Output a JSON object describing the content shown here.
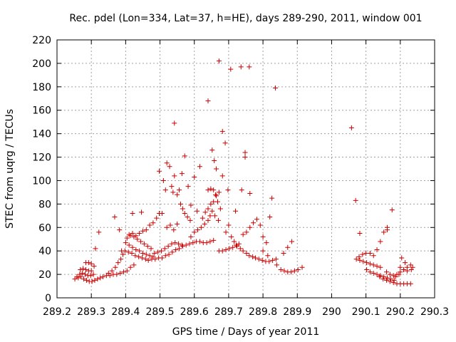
{
  "chart_data": {
    "type": "scatter",
    "title": "Rec. pdel (Lon=334, Lat=37, h=HE), days 289-290, 2011, window 001",
    "xlabel": "GPS time / Days of year 2011",
    "ylabel": "STEC from uqrg / TECUs",
    "xlim": [
      289.2,
      290.3
    ],
    "ylim": [
      0,
      220
    ],
    "xticks": [
      289.2,
      289.3,
      289.4,
      289.5,
      289.6,
      289.7,
      289.8,
      289.9,
      290,
      290.1,
      290.2,
      290.3
    ],
    "xtick_labels": [
      "289.2",
      "289.3",
      "289.4",
      "289.5",
      "289.6",
      "289.7",
      "289.8",
      "289.9",
      "290",
      "290.1",
      "290.2",
      "290.3"
    ],
    "yticks": [
      0,
      20,
      40,
      60,
      80,
      100,
      120,
      140,
      160,
      180,
      200,
      220
    ],
    "ytick_labels": [
      "0",
      "20",
      "40",
      "60",
      "80",
      "100",
      "120",
      "140",
      "160",
      "180",
      "200",
      "220"
    ],
    "grid": true,
    "marker": "+",
    "color": "#cc0000",
    "series": [
      {
        "name": "STEC",
        "points": [
          [
            289.252,
            16
          ],
          [
            289.262,
            17
          ],
          [
            289.27,
            18
          ],
          [
            289.278,
            16
          ],
          [
            289.286,
            15
          ],
          [
            289.294,
            14
          ],
          [
            289.302,
            14
          ],
          [
            289.31,
            15
          ],
          [
            289.318,
            16
          ],
          [
            289.326,
            17
          ],
          [
            289.258,
            18
          ],
          [
            289.266,
            20
          ],
          [
            289.274,
            21
          ],
          [
            289.282,
            20
          ],
          [
            289.29,
            19
          ],
          [
            289.298,
            19
          ],
          [
            289.306,
            20
          ],
          [
            289.268,
            24
          ],
          [
            289.276,
            25
          ],
          [
            289.284,
            24
          ],
          [
            289.292,
            23
          ],
          [
            289.3,
            23
          ],
          [
            289.284,
            30
          ],
          [
            289.292,
            30
          ],
          [
            289.3,
            29
          ],
          [
            289.308,
            27
          ],
          [
            289.312,
            42
          ],
          [
            289.322,
            56
          ],
          [
            289.334,
            18
          ],
          [
            289.344,
            19
          ],
          [
            289.354,
            19
          ],
          [
            289.364,
            20
          ],
          [
            289.374,
            20
          ],
          [
            289.384,
            21
          ],
          [
            289.394,
            22
          ],
          [
            289.404,
            23
          ],
          [
            289.414,
            26
          ],
          [
            289.424,
            28
          ],
          [
            289.35,
            21
          ],
          [
            289.36,
            23
          ],
          [
            289.37,
            26
          ],
          [
            289.378,
            30
          ],
          [
            289.386,
            33
          ],
          [
            289.392,
            37
          ],
          [
            289.368,
            69
          ],
          [
            289.382,
            58
          ],
          [
            289.388,
            40
          ],
          [
            289.398,
            40
          ],
          [
            289.408,
            39
          ],
          [
            289.418,
            38
          ],
          [
            289.428,
            36
          ],
          [
            289.438,
            35
          ],
          [
            289.448,
            34
          ],
          [
            289.458,
            33
          ],
          [
            289.4,
            47
          ],
          [
            289.41,
            45
          ],
          [
            289.42,
            43
          ],
          [
            289.43,
            41
          ],
          [
            289.44,
            40
          ],
          [
            289.45,
            38
          ],
          [
            289.46,
            37
          ],
          [
            289.47,
            36
          ],
          [
            289.48,
            35
          ],
          [
            289.404,
            51
          ],
          [
            289.414,
            53
          ],
          [
            289.424,
            52
          ],
          [
            289.434,
            50
          ],
          [
            289.444,
            48
          ],
          [
            289.454,
            46
          ],
          [
            289.464,
            44
          ],
          [
            289.474,
            42
          ],
          [
            289.41,
            54
          ],
          [
            289.42,
            55
          ],
          [
            289.43,
            53
          ],
          [
            289.44,
            55
          ],
          [
            289.45,
            57
          ],
          [
            289.42,
            72
          ],
          [
            289.446,
            73
          ],
          [
            289.46,
            58
          ],
          [
            289.47,
            62
          ],
          [
            289.48,
            64
          ],
          [
            289.49,
            68
          ],
          [
            289.498,
            72
          ],
          [
            289.506,
            72
          ],
          [
            289.466,
            32
          ],
          [
            289.476,
            33
          ],
          [
            289.486,
            33
          ],
          [
            289.496,
            34
          ],
          [
            289.506,
            34
          ],
          [
            289.516,
            36
          ],
          [
            289.526,
            37
          ],
          [
            289.536,
            39
          ],
          [
            289.546,
            41
          ],
          [
            289.556,
            42
          ],
          [
            289.484,
            38
          ],
          [
            289.494,
            39
          ],
          [
            289.504,
            40
          ],
          [
            289.514,
            42
          ],
          [
            289.524,
            44
          ],
          [
            289.534,
            46
          ],
          [
            289.544,
            47
          ],
          [
            289.554,
            46
          ],
          [
            289.564,
            45
          ],
          [
            289.498,
            108
          ],
          [
            289.51,
            100
          ],
          [
            289.516,
            92
          ],
          [
            289.52,
            115
          ],
          [
            289.528,
            112
          ],
          [
            289.534,
            95
          ],
          [
            289.538,
            90
          ],
          [
            289.542,
            104
          ],
          [
            289.55,
            88
          ],
          [
            289.556,
            92
          ],
          [
            289.542,
            149
          ],
          [
            289.564,
            106
          ],
          [
            289.572,
            121
          ],
          [
            289.582,
            95
          ],
          [
            289.59,
            79
          ],
          [
            289.6,
            103
          ],
          [
            289.608,
            74
          ],
          [
            289.616,
            112
          ],
          [
            289.52,
            60
          ],
          [
            289.53,
            62
          ],
          [
            289.54,
            58
          ],
          [
            289.55,
            63
          ],
          [
            289.56,
            80
          ],
          [
            289.566,
            76
          ],
          [
            289.572,
            72
          ],
          [
            289.58,
            69
          ],
          [
            289.588,
            66
          ],
          [
            289.566,
            44
          ],
          [
            289.576,
            45
          ],
          [
            289.586,
            46
          ],
          [
            289.596,
            47
          ],
          [
            289.606,
            48
          ],
          [
            289.616,
            48
          ],
          [
            289.626,
            47
          ],
          [
            289.636,
            47
          ],
          [
            289.646,
            48
          ],
          [
            289.656,
            49
          ],
          [
            289.59,
            52
          ],
          [
            289.6,
            56
          ],
          [
            289.61,
            58
          ],
          [
            289.62,
            60
          ],
          [
            289.63,
            63
          ],
          [
            289.64,
            66
          ],
          [
            289.646,
            70
          ],
          [
            289.652,
            74
          ],
          [
            289.66,
            70
          ],
          [
            289.67,
            66
          ],
          [
            289.624,
            68
          ],
          [
            289.632,
            73
          ],
          [
            289.64,
            76
          ],
          [
            289.648,
            80
          ],
          [
            289.656,
            82
          ],
          [
            289.664,
            87
          ],
          [
            289.672,
            90
          ],
          [
            289.64,
            168
          ],
          [
            289.652,
            126
          ],
          [
            289.658,
            117
          ],
          [
            289.664,
            110
          ],
          [
            289.672,
            202
          ],
          [
            289.682,
            142
          ],
          [
            289.69,
            132
          ],
          [
            289.698,
            92
          ],
          [
            289.682,
            104
          ],
          [
            289.64,
            92
          ],
          [
            289.648,
            93
          ],
          [
            289.656,
            92
          ],
          [
            289.662,
            88
          ],
          [
            289.668,
            82
          ],
          [
            289.676,
            76
          ],
          [
            289.672,
            40
          ],
          [
            289.682,
            40
          ],
          [
            289.692,
            41
          ],
          [
            289.702,
            42
          ],
          [
            289.712,
            43
          ],
          [
            289.722,
            45
          ],
          [
            289.73,
            46
          ],
          [
            289.692,
            56
          ],
          [
            289.7,
            62
          ],
          [
            289.708,
            52
          ],
          [
            289.716,
            48
          ],
          [
            289.724,
            44
          ],
          [
            289.734,
            42
          ],
          [
            289.742,
            40
          ],
          [
            289.752,
            38
          ],
          [
            289.76,
            36
          ],
          [
            289.77,
            35
          ],
          [
            289.706,
            195
          ],
          [
            289.736,
            197
          ],
          [
            289.76,
            197
          ],
          [
            289.836,
            179
          ],
          [
            289.748,
            124
          ],
          [
            289.748,
            120
          ],
          [
            289.738,
            92
          ],
          [
            289.762,
            89
          ],
          [
            289.72,
            74
          ],
          [
            289.742,
            54
          ],
          [
            289.752,
            56
          ],
          [
            289.762,
            60
          ],
          [
            289.772,
            64
          ],
          [
            289.782,
            67
          ],
          [
            289.792,
            62
          ],
          [
            289.8,
            52
          ],
          [
            289.81,
            47
          ],
          [
            289.82,
            69
          ],
          [
            289.778,
            34
          ],
          [
            289.788,
            33
          ],
          [
            289.798,
            32
          ],
          [
            289.808,
            31
          ],
          [
            289.818,
            31
          ],
          [
            289.828,
            32
          ],
          [
            289.838,
            33
          ],
          [
            289.8,
            40
          ],
          [
            289.814,
            36
          ],
          [
            289.826,
            85
          ],
          [
            289.84,
            28
          ],
          [
            289.852,
            24
          ],
          [
            289.862,
            23
          ],
          [
            289.872,
            22
          ],
          [
            289.882,
            22
          ],
          [
            289.892,
            23
          ],
          [
            289.902,
            24
          ],
          [
            289.914,
            26
          ],
          [
            289.86,
            38
          ],
          [
            289.872,
            43
          ],
          [
            289.884,
            48
          ],
          [
            290.058,
            145
          ],
          [
            290.07,
            83
          ],
          [
            290.082,
            55
          ],
          [
            290.072,
            33
          ],
          [
            290.082,
            32
          ],
          [
            290.092,
            31
          ],
          [
            290.102,
            30
          ],
          [
            290.112,
            29
          ],
          [
            290.122,
            28
          ],
          [
            290.132,
            27
          ],
          [
            290.142,
            26
          ],
          [
            290.08,
            35
          ],
          [
            290.09,
            37
          ],
          [
            290.1,
            38
          ],
          [
            290.112,
            38
          ],
          [
            290.122,
            36
          ],
          [
            290.132,
            41
          ],
          [
            290.142,
            48
          ],
          [
            290.152,
            56
          ],
          [
            290.162,
            60
          ],
          [
            290.102,
            24
          ],
          [
            290.112,
            22
          ],
          [
            290.122,
            21
          ],
          [
            290.132,
            20
          ],
          [
            290.142,
            19
          ],
          [
            290.152,
            18
          ],
          [
            290.162,
            17
          ],
          [
            290.172,
            16
          ],
          [
            290.182,
            15
          ],
          [
            290.14,
            18
          ],
          [
            290.15,
            16
          ],
          [
            290.16,
            15
          ],
          [
            290.17,
            14
          ],
          [
            290.18,
            13
          ],
          [
            290.19,
            12
          ],
          [
            290.2,
            12
          ],
          [
            290.21,
            12
          ],
          [
            290.22,
            12
          ],
          [
            290.23,
            12
          ],
          [
            290.162,
            58
          ],
          [
            290.176,
            75
          ],
          [
            290.16,
            22
          ],
          [
            290.17,
            20
          ],
          [
            290.18,
            19
          ],
          [
            290.19,
            20
          ],
          [
            290.2,
            22
          ],
          [
            290.21,
            24
          ],
          [
            290.22,
            26
          ],
          [
            290.23,
            28
          ],
          [
            290.2,
            26
          ],
          [
            290.21,
            24
          ],
          [
            290.22,
            23
          ],
          [
            290.232,
            24
          ],
          [
            290.236,
            26
          ],
          [
            290.204,
            34
          ],
          [
            290.214,
            30
          ],
          [
            290.196,
            20
          ],
          [
            290.186,
            18
          ]
        ]
      }
    ]
  }
}
